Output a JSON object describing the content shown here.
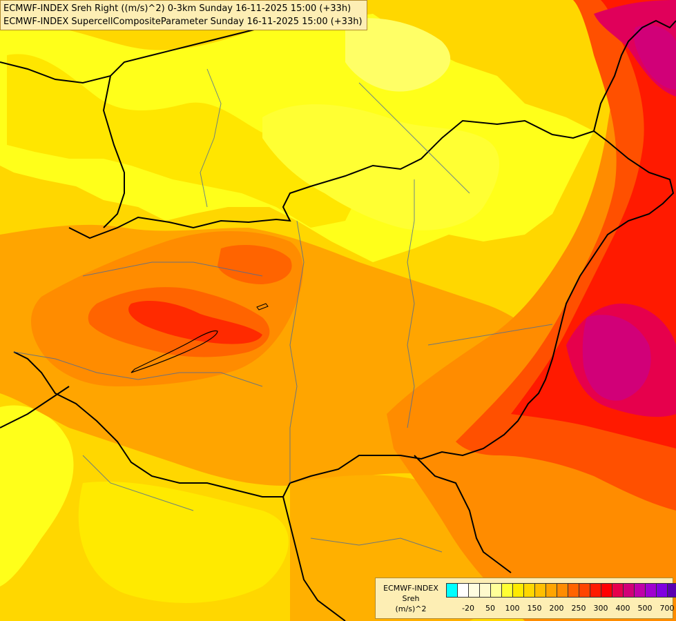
{
  "header": {
    "line1": "ECMWF-INDEX Sreh Right ((m/s)^2) 0-3km Sunday 16-11-2025 15:00 (+33h)",
    "line2": "ECMWF-INDEX SupercellCompositeParameter Sunday 16-11-2025 15:00 (+33h)"
  },
  "legend": {
    "title1": "ECMWF-INDEX",
    "title2": "Sreh",
    "title3": "(m/s)^2",
    "colors": [
      "#00ffff",
      "#ffffff",
      "#fffde0",
      "#fffacd",
      "#ffff99",
      "#ffff33",
      "#ffea00",
      "#ffd700",
      "#ffbf00",
      "#ffa500",
      "#ff8c00",
      "#ff6400",
      "#ff4500",
      "#ff1a00",
      "#ff0000",
      "#e6004c",
      "#d10078",
      "#c000a8",
      "#a000d0",
      "#8000e0",
      "#5a00b0",
      "#3000a0",
      "#00007f"
    ],
    "tick_labels": [
      "-20",
      "50",
      "100",
      "150",
      "200",
      "250",
      "300",
      "400",
      "500",
      "700"
    ]
  },
  "palette": {
    "yellow": "#ffff00",
    "gold": "#ffd700",
    "amber": "#ffbf00",
    "orange": "#ffa500",
    "dark_orange": "#ff7a1a",
    "red_orange": "#ff4500",
    "red": "#ff1a00",
    "crimson": "#e60040",
    "magenta": "#d6006a"
  }
}
